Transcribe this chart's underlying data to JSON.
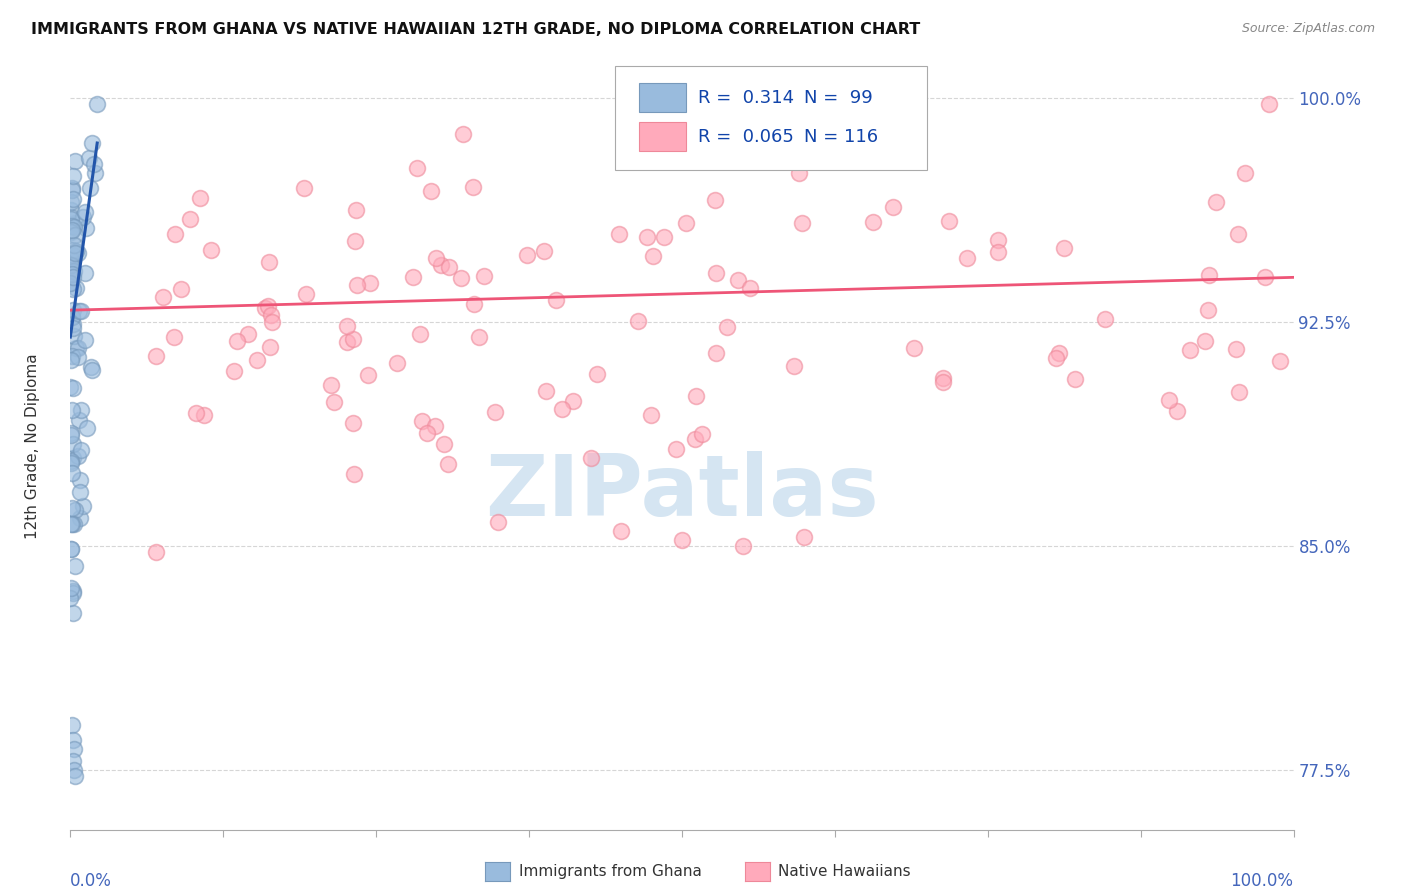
{
  "title": "IMMIGRANTS FROM GHANA VS NATIVE HAWAIIAN 12TH GRADE, NO DIPLOMA CORRELATION CHART",
  "source": "Source: ZipAtlas.com",
  "ylabel": "12th Grade, No Diploma",
  "ytick_labels": [
    "77.5%",
    "85.0%",
    "92.5%",
    "100.0%"
  ],
  "ytick_values": [
    0.775,
    0.85,
    0.925,
    1.0
  ],
  "legend_label1": "Immigrants from Ghana",
  "legend_label2": "Native Hawaiians",
  "legend_r1": "R =  0.314",
  "legend_n1": "N =  99",
  "legend_r2": "R =  0.065",
  "legend_n2": "N = 116",
  "blue_color": "#99BBDD",
  "pink_color": "#FFAABB",
  "blue_edge_color": "#7799BB",
  "pink_edge_color": "#EE8899",
  "blue_line_color": "#2255AA",
  "pink_line_color": "#EE5577",
  "background_color": "#FFFFFF",
  "watermark_text": "ZIPatlas",
  "watermark_color": "#D5E5F2",
  "title_color": "#111111",
  "ytick_color": "#4466BB",
  "xtick_color": "#4466BB",
  "grid_color": "#CCCCCC",
  "legend_text_color": "#1144AA",
  "ylabel_color": "#333333",
  "source_color": "#888888"
}
